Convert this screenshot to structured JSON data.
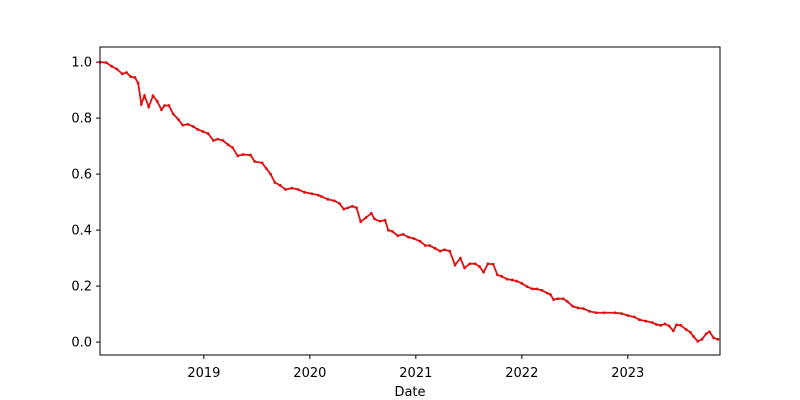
{
  "chart_data": {
    "type": "line",
    "xlabel": "Date",
    "x": [
      2018.02,
      2018.08,
      2018.13,
      2018.18,
      2018.23,
      2018.27,
      2018.31,
      2018.35,
      2018.38,
      2018.41,
      2018.44,
      2018.48,
      2018.52,
      2018.56,
      2018.6,
      2018.63,
      2018.67,
      2018.71,
      2018.76,
      2018.8,
      2018.85,
      2018.9,
      2018.94,
      2018.99,
      2019.04,
      2019.09,
      2019.13,
      2019.18,
      2019.23,
      2019.27,
      2019.32,
      2019.37,
      2019.44,
      2019.48,
      2019.55,
      2019.59,
      2019.63,
      2019.67,
      2019.72,
      2019.77,
      2019.83,
      2019.89,
      2019.95,
      2020.02,
      2020.08,
      2020.11,
      2020.17,
      2020.23,
      2020.28,
      2020.32,
      2020.36,
      2020.4,
      2020.44,
      2020.48,
      2020.53,
      2020.58,
      2020.61,
      2020.66,
      2020.71,
      2020.74,
      2020.78,
      2020.83,
      2020.88,
      2020.93,
      2020.98,
      2021.04,
      2021.09,
      2021.13,
      2021.18,
      2021.23,
      2021.27,
      2021.32,
      2021.37,
      2021.42,
      2021.46,
      2021.51,
      2021.56,
      2021.6,
      2021.64,
      2021.68,
      2021.73,
      2021.77,
      2021.81,
      2021.86,
      2021.91,
      2021.95,
      2022.0,
      2022.05,
      2022.1,
      2022.14,
      2022.19,
      2022.24,
      2022.27,
      2022.3,
      2022.34,
      2022.39,
      2022.43,
      2022.48,
      2022.53,
      2022.58,
      2022.64,
      2022.7,
      2022.78,
      2022.88,
      2022.94,
      2023.0,
      2023.06,
      2023.11,
      2023.17,
      2023.23,
      2023.27,
      2023.31,
      2023.35,
      2023.39,
      2023.43,
      2023.46,
      2023.5,
      2023.55,
      2023.59,
      2023.62,
      2023.66,
      2023.7,
      2023.74,
      2023.77,
      2023.81,
      2023.85
    ],
    "series": [
      {
        "color": "#dd1111",
        "values": [
          1.0,
          0.998,
          0.985,
          0.975,
          0.958,
          0.963,
          0.948,
          0.945,
          0.925,
          0.85,
          0.88,
          0.84,
          0.88,
          0.86,
          0.83,
          0.845,
          0.845,
          0.815,
          0.795,
          0.775,
          0.778,
          0.77,
          0.76,
          0.752,
          0.745,
          0.72,
          0.725,
          0.72,
          0.705,
          0.695,
          0.665,
          0.67,
          0.668,
          0.645,
          0.64,
          0.62,
          0.6,
          0.57,
          0.56,
          0.545,
          0.55,
          0.545,
          0.535,
          0.53,
          0.525,
          0.52,
          0.51,
          0.505,
          0.495,
          0.475,
          0.48,
          0.485,
          0.48,
          0.43,
          0.445,
          0.46,
          0.44,
          0.432,
          0.435,
          0.4,
          0.395,
          0.38,
          0.385,
          0.375,
          0.37,
          0.36,
          0.345,
          0.345,
          0.335,
          0.325,
          0.33,
          0.325,
          0.275,
          0.3,
          0.265,
          0.28,
          0.28,
          0.27,
          0.25,
          0.28,
          0.278,
          0.24,
          0.235,
          0.225,
          0.222,
          0.218,
          0.21,
          0.198,
          0.19,
          0.19,
          0.185,
          0.175,
          0.17,
          0.152,
          0.155,
          0.155,
          0.145,
          0.128,
          0.122,
          0.12,
          0.11,
          0.105,
          0.105,
          0.105,
          0.102,
          0.095,
          0.09,
          0.08,
          0.075,
          0.07,
          0.063,
          0.06,
          0.065,
          0.058,
          0.04,
          0.062,
          0.06,
          0.045,
          0.035,
          0.02,
          0.003,
          0.01,
          0.03,
          0.037,
          0.015,
          0.01
        ]
      }
    ],
    "xlim": [
      2018.02,
      2023.87
    ],
    "xticks": [
      2019,
      2020,
      2021,
      2022,
      2023
    ],
    "ylim": [
      -0.046,
      1.054
    ],
    "yticks": [
      {
        "value": 0,
        "label": "0.0"
      },
      {
        "value": 0.2,
        "label": "0.2"
      },
      {
        "value": 0.4,
        "label": "0.4"
      },
      {
        "value": 0.6,
        "label": "0.6"
      },
      {
        "value": 0.8,
        "label": "0.8"
      },
      {
        "value": 1,
        "label": "1.0"
      }
    ]
  }
}
